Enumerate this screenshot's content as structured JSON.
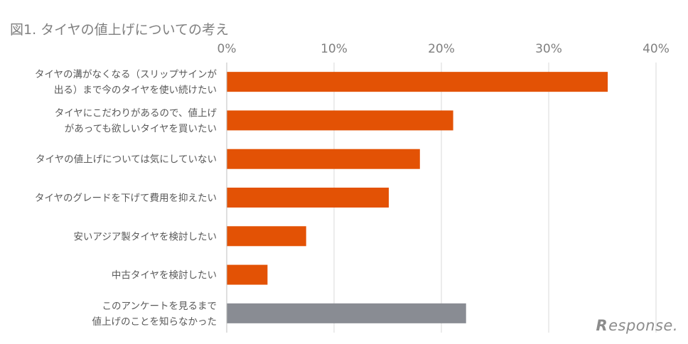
{
  "chart_data": {
    "type": "bar",
    "orientation": "horizontal",
    "title": "図1. タイヤの値上げについての考え",
    "xlim": [
      0,
      40
    ],
    "xticks": [
      "0%",
      "10%",
      "20%",
      "30%",
      "40%"
    ],
    "xaxis_position": "top",
    "grid": true,
    "categories": [
      [
        "タイヤの溝がなくなる（スリップサインが",
        "出る）まで今のタイヤを使い続けたい"
      ],
      [
        "タイヤにこだわりがあるので、値上げ",
        "があっても欲しいタイヤを買いたい"
      ],
      [
        "タイヤの値上げについては気にしていない"
      ],
      [
        "タイヤのグレードを下げて費用を抑えたい"
      ],
      [
        "安いアジア製タイヤを検討したい"
      ],
      [
        "中古タイヤを検討したい"
      ],
      [
        "このアンケートを見るまで",
        "値上げのことを知らなかった"
      ]
    ],
    "values": [
      35.5,
      21.1,
      18.0,
      15.1,
      7.4,
      3.8,
      22.3
    ],
    "colors": [
      "#e35205",
      "#e35205",
      "#e35205",
      "#e35205",
      "#e35205",
      "#e35205",
      "#898c93"
    ]
  },
  "logo": {
    "text": "esponse.",
    "mark": "R"
  }
}
